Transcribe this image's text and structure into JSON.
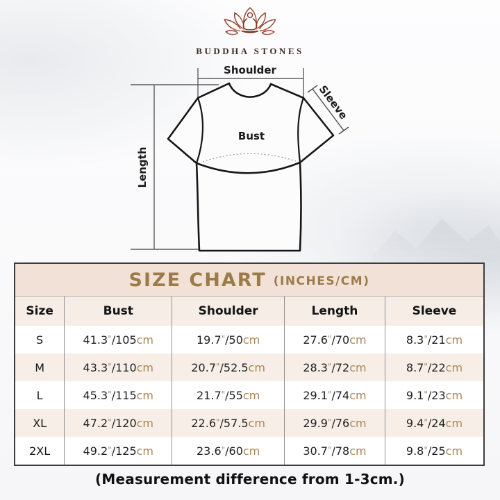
{
  "brand": {
    "name": "BUDDHA STONES"
  },
  "diagram": {
    "shoulder_label": "Shoulder",
    "sleeve_label": "Sleeve",
    "bust_label": "Bust",
    "length_label": "Length"
  },
  "size_chart": {
    "title": "SIZE CHART",
    "subtitle": "(INCHES/CM)",
    "columns": [
      "Size",
      "Bust",
      "Shoulder",
      "Length",
      "Sleeve"
    ],
    "units": {
      "inch_mark": "\"",
      "separator": "/",
      "cm_suffix": "cm"
    },
    "rows": [
      {
        "size": "S",
        "cells": [
          {
            "in": "41.3",
            "cm": "105"
          },
          {
            "in": "19.7",
            "cm": "50"
          },
          {
            "in": "27.6",
            "cm": "70"
          },
          {
            "in": "8.3",
            "cm": "21"
          }
        ]
      },
      {
        "size": "M",
        "cells": [
          {
            "in": "43.3",
            "cm": "110"
          },
          {
            "in": "20.7",
            "cm": "52.5"
          },
          {
            "in": "28.3",
            "cm": "72"
          },
          {
            "in": "8.7",
            "cm": "22"
          }
        ]
      },
      {
        "size": "L",
        "cells": [
          {
            "in": "45.3",
            "cm": "115"
          },
          {
            "in": "21.7",
            "cm": "55"
          },
          {
            "in": "29.1",
            "cm": "74"
          },
          {
            "in": "9.1",
            "cm": "23"
          }
        ]
      },
      {
        "size": "XL",
        "cells": [
          {
            "in": "47.2",
            "cm": "120"
          },
          {
            "in": "22.6",
            "cm": "57.5"
          },
          {
            "in": "29.9",
            "cm": "76"
          },
          {
            "in": "9.4",
            "cm": "24"
          }
        ]
      },
      {
        "size": "2XL",
        "cells": [
          {
            "in": "49.2",
            "cm": "125"
          },
          {
            "in": "23.6",
            "cm": "60"
          },
          {
            "in": "30.7",
            "cm": "78"
          },
          {
            "in": "9.8",
            "cm": "25"
          }
        ]
      }
    ]
  },
  "note": "(Measurement difference from 1-3cm.)",
  "colors": {
    "accent_gold": "#9c7b4a",
    "cm_tan": "#a8865a",
    "band_pink": "#f2e1d7",
    "row_beige": "#f7eee7",
    "border_dark": "#3c3c3c",
    "logo_red_dark": "#8c3424",
    "logo_red_light": "#b06a48"
  }
}
